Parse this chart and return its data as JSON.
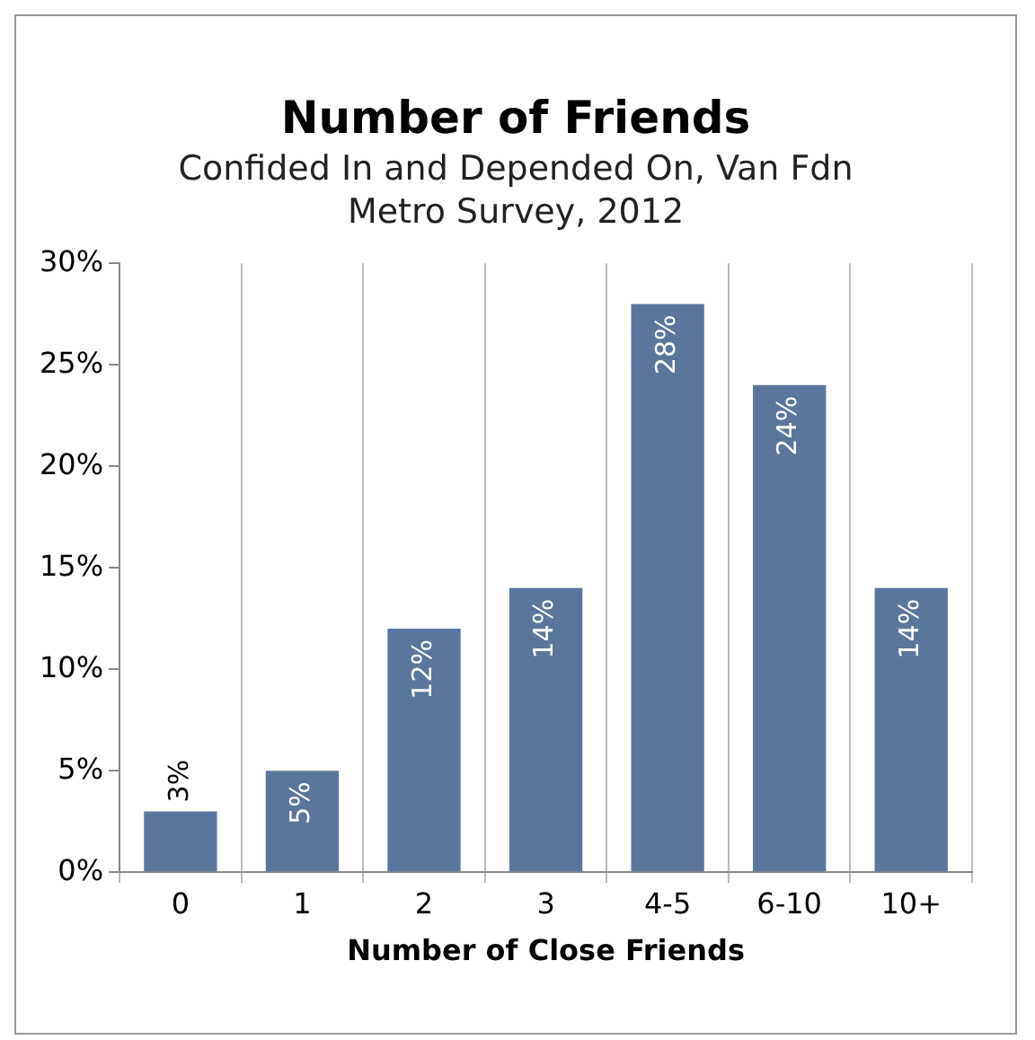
{
  "chart_data": {
    "type": "bar",
    "title": "Number of Friends",
    "subtitle": "Confided In and Depended On, Van Fdn Metro Survey, 2012",
    "xlabel": "Number of Close Friends",
    "categories": [
      "0",
      "1",
      "2",
      "3",
      "4-5",
      "6-10",
      "10+"
    ],
    "values": [
      3,
      5,
      12,
      14,
      28,
      24,
      14
    ],
    "value_labels": [
      "3%",
      "5%",
      "12%",
      "14%",
      "28%",
      "24%",
      "14%"
    ],
    "color": "#5b769d",
    "ylim": [
      0,
      30
    ],
    "yticks": [
      {
        "value": 0,
        "label": "0%"
      },
      {
        "value": 5,
        "label": "5%"
      },
      {
        "value": 10,
        "label": "10%"
      },
      {
        "value": 15,
        "label": "15%"
      },
      {
        "value": 20,
        "label": "20%"
      },
      {
        "value": 25,
        "label": "25%"
      },
      {
        "value": 30,
        "label": "30%"
      }
    ],
    "grid": "x",
    "legend": false
  }
}
